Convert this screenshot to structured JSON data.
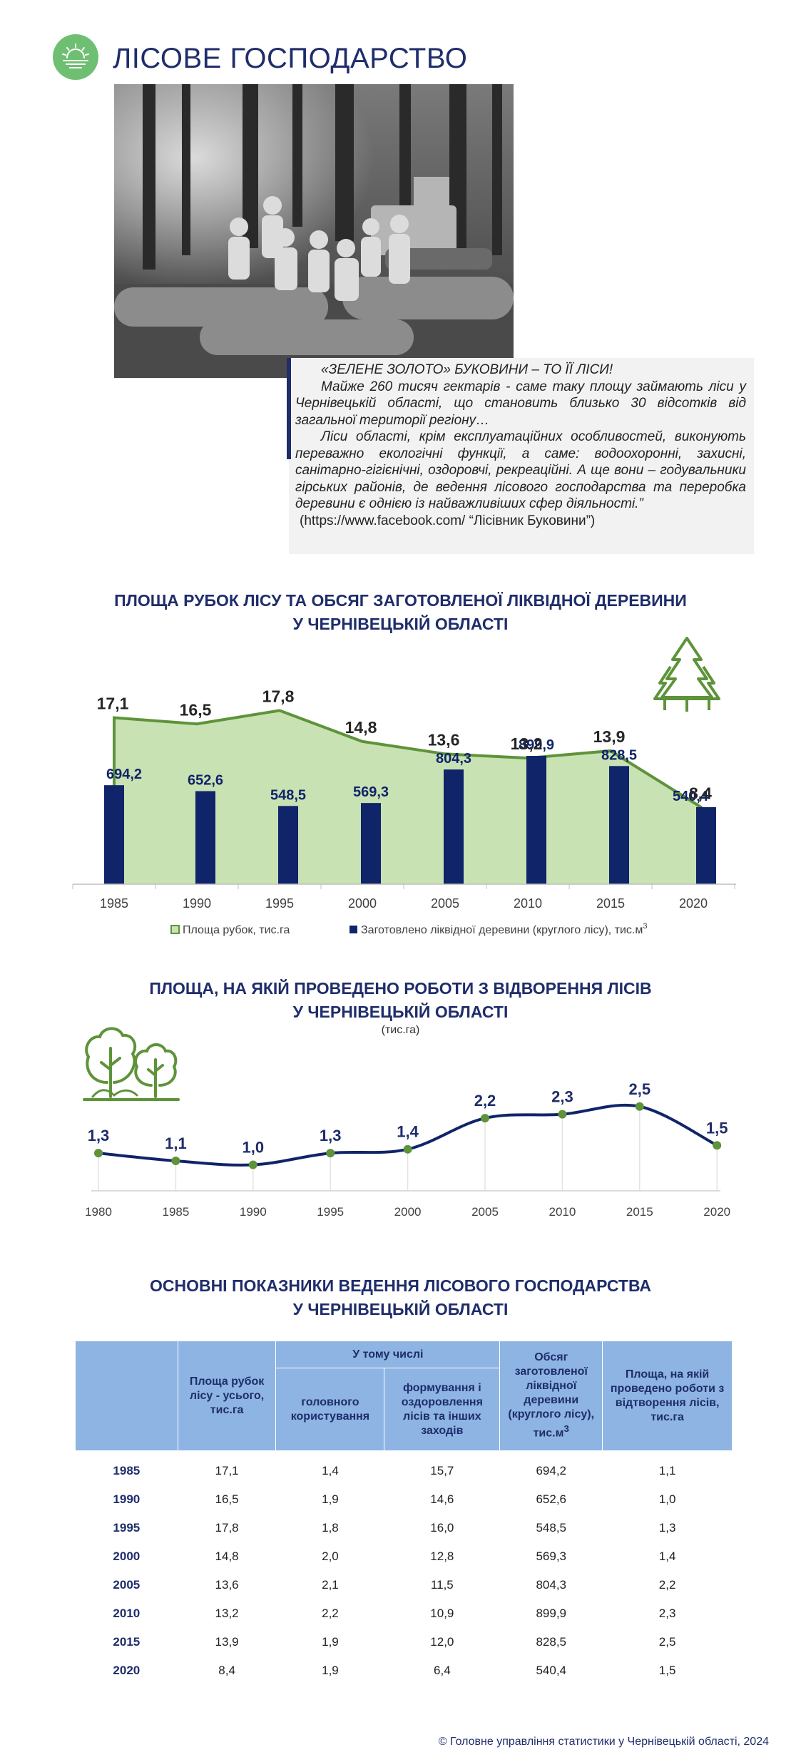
{
  "header": {
    "title": "ЛІСОВЕ ГОСПОДАРСТВО",
    "logo_icon": "sun-over-water-icon",
    "logo_color": "#6fbf73"
  },
  "quote": {
    "heading": "«ЗЕЛЕНЕ ЗОЛОТО» БУКОВИНИ – ТО ЇЇ ЛІСИ!",
    "paragraph1": "Майже 260 тисяч гектарів - саме таку площу займають ліси у Чернівецькій області, що становить близько 30 відсотків від загальної території регіону…",
    "paragraph2": "Ліси області, крім експлуатаційних особливостей, виконують переважно екологічні функції, а саме: водоохоронні, захисні, санітарно-гігієнічні, оздоровчі, рекреаційні. А ще вони – годувальники гірських районів, де ведення лісового господарства та переробка деревини є однією із найважливіших сфер діяльності.”",
    "source": "(https://www.facebook.com/ “Лісівник Буковини”)"
  },
  "chart_data": [
    {
      "type": "bar",
      "title": "ПЛОЩА РУБОК ЛІСУ ТА ОБСЯГ ЗАГОТОВЛЕНОЇ ЛІКВІДНОЇ ДЕРЕВИНИ",
      "subtitle": "У ЧЕРНІВЕЦЬКІЙ ОБЛАСТІ",
      "categories": [
        "1985",
        "1990",
        "1995",
        "2000",
        "2005",
        "2010",
        "2015",
        "2020"
      ],
      "series": [
        {
          "name": "Площа рубок, тис.га",
          "kind": "area",
          "values": [
            17.1,
            16.5,
            17.8,
            14.8,
            13.6,
            13.2,
            13.9,
            8.4
          ],
          "labels": [
            "17,1",
            "16,5",
            "17,8",
            "14,8",
            "13,6",
            "13,2",
            "13,9",
            "8,4"
          ],
          "color": "#5e933a",
          "fill": "#c9e2b4"
        },
        {
          "name": "Заготовлено ліквідної деревини (круглого лісу), тис.м",
          "name_sup": "3",
          "kind": "bar",
          "values": [
            694.2,
            652.6,
            548.5,
            569.3,
            804.3,
            899.9,
            828.5,
            540.4
          ],
          "labels": [
            "694,2",
            "652,6",
            "548,5",
            "569,3",
            "804,3",
            "899,9",
            "828,5",
            "540,4"
          ],
          "color": "#102469"
        }
      ],
      "decor_icon": "pine-trees-icon",
      "legend_position": "bottom"
    },
    {
      "type": "line",
      "title": "ПЛОЩА, НА ЯКІЙ ПРОВЕДЕНО РОБОТИ З ВІДВОРЕННЯ ЛІСІВ",
      "subtitle": "У ЧЕРНІВЕЦЬКІЙ ОБЛАСТІ",
      "unit_note": "(тис.га)",
      "x": [
        "1980",
        "1985",
        "1990",
        "1995",
        "2000",
        "2005",
        "2010",
        "2015",
        "2020"
      ],
      "series": [
        {
          "values": [
            1.3,
            1.1,
            1.0,
            1.3,
            1.4,
            2.2,
            2.3,
            2.5,
            1.5
          ],
          "labels": [
            "1,3",
            "1,1",
            "1,0",
            "1,3",
            "1,4",
            "2,2",
            "2,3",
            "2,5",
            "1,5"
          ],
          "color": "#102469",
          "marker_color": "#5e933a"
        }
      ],
      "decor_icon": "deciduous-trees-icon"
    }
  ],
  "table": {
    "title": "ОСНОВНІ ПОКАЗНИКИ ВЕДЕННЯ ЛІСОВОГО ГОСПОДАРСТВА",
    "subtitle": "У ЧЕРНІВЕЦЬКІЙ ОБЛАСТІ",
    "header": {
      "col_total": "Площа рубок лісу - усього, тис.га",
      "group": "У тому числі",
      "col_main": "головного користування",
      "col_form": "формування і оздоровлення лісів та інших заходів",
      "col_volume": "Обсяг заготовленої ліквідної деревини (круглого лісу), тис.м",
      "col_volume_sup": "3",
      "col_restore": "Площа, на якій проведено роботи з відтворення лісів, тис.га"
    },
    "rows": [
      [
        "1985",
        "17,1",
        "1,4",
        "15,7",
        "694,2",
        "1,1"
      ],
      [
        "1990",
        "16,5",
        "1,9",
        "14,6",
        "652,6",
        "1,0"
      ],
      [
        "1995",
        "17,8",
        "1,8",
        "16,0",
        "548,5",
        "1,3"
      ],
      [
        "2000",
        "14,8",
        "2,0",
        "12,8",
        "569,3",
        "1,4"
      ],
      [
        "2005",
        "13,6",
        "2,1",
        "11,5",
        "804,3",
        "2,2"
      ],
      [
        "2010",
        "13,2",
        "2,2",
        "10,9",
        "899,9",
        "2,3"
      ],
      [
        "2015",
        "13,9",
        "1,9",
        "12,0",
        "828,5",
        "2,5"
      ],
      [
        "2020",
        "8,4",
        "1,9",
        "6,4",
        "540,4",
        "1,5"
      ]
    ]
  },
  "footer": {
    "copyright": "© Головне управління статистики у Чернівецькій області, 2024"
  }
}
